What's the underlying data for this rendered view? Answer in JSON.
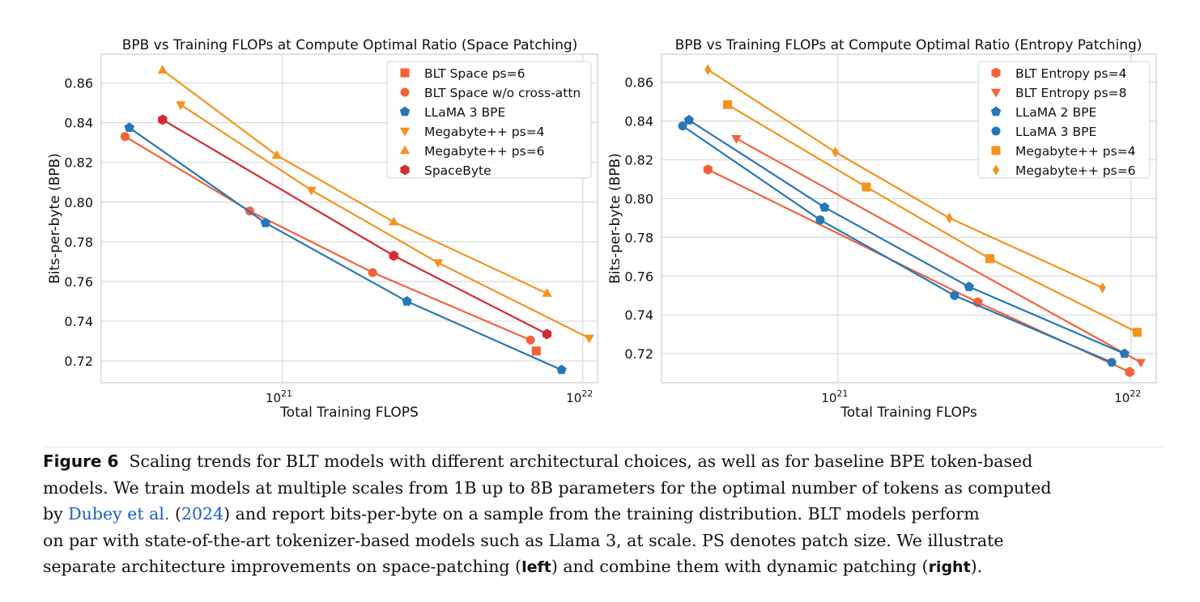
{
  "chart_data": [
    {
      "type": "line",
      "title": "BPB vs Training FLOPs at Compute Optimal Ratio (Space Patching)",
      "xlabel": "Total Training FLOPS",
      "ylabel": "Bits-per-byte (BPB)",
      "xscale": "log",
      "xlim": [
        2.5e+20,
        1.12e+22
      ],
      "ylim": [
        0.709,
        0.8745
      ],
      "xticks": [
        1e+21,
        1e+22
      ],
      "yticks": [
        0.72,
        0.74,
        0.76,
        0.78,
        0.8,
        0.82,
        0.84,
        0.86
      ],
      "grid": true,
      "legend_position": "top-right",
      "series": [
        {
          "name": "BLT Space ps=6",
          "color": "#f4623a",
          "marker": "square",
          "line": false,
          "x": [
            7e+21
          ],
          "y": [
            0.725
          ]
        },
        {
          "name": "BLT Space w/o cross-attn",
          "color": "#f4623a",
          "marker": "circle",
          "line": true,
          "x": [
            3e+20,
            7.8e+20,
            2e+21,
            6.7e+21
          ],
          "y": [
            0.833,
            0.7955,
            0.7645,
            0.7305
          ]
        },
        {
          "name": "LLaMA 3 BPE",
          "color": "#2677b8",
          "marker": "pentagon",
          "line": true,
          "x": [
            3.1e+20,
            8.8e+20,
            2.6e+21,
            8.5e+21
          ],
          "y": [
            0.8375,
            0.7895,
            0.75,
            0.7155
          ]
        },
        {
          "name": "Megabyte++ ps=4",
          "color": "#f5921e",
          "marker": "triangle-down",
          "line": true,
          "x": [
            4.6e+20,
            1.25e+21,
            3.3e+21,
            1.05e+22
          ],
          "y": [
            0.849,
            0.806,
            0.7695,
            0.7315
          ]
        },
        {
          "name": "Megabyte++ ps=6",
          "color": "#f5921e",
          "marker": "triangle-up",
          "line": true,
          "x": [
            4e+20,
            9.6e+20,
            2.35e+21,
            7.6e+21
          ],
          "y": [
            0.8665,
            0.8235,
            0.79,
            0.754
          ]
        },
        {
          "name": "SpaceByte",
          "color": "#d42c36",
          "marker": "hexagon",
          "line": true,
          "x": [
            4e+20,
            2.35e+21,
            7.6e+21
          ],
          "y": [
            0.8415,
            0.773,
            0.7335
          ]
        }
      ]
    },
    {
      "type": "line",
      "title": "BPB vs Training FLOPs at Compute Optimal Ratio (Entropy Patching)",
      "xlabel": "Total Training FLOPs",
      "ylabel": "Bits-per-byte (BPB)",
      "xscale": "log",
      "xlim": [
        2.5e+20,
        1.22e+22
      ],
      "ylim": [
        0.705,
        0.8745
      ],
      "xticks": [
        1e+21,
        1e+22
      ],
      "yticks": [
        0.72,
        0.74,
        0.76,
        0.78,
        0.8,
        0.82,
        0.84,
        0.86
      ],
      "grid": true,
      "legend_position": "top-right",
      "series": [
        {
          "name": "BLT Entropy ps=4",
          "color": "#f4623a",
          "marker": "hexagon",
          "line": true,
          "x": [
            3.6e+20,
            3e+21,
            9.9e+21
          ],
          "y": [
            0.815,
            0.7465,
            0.7105
          ]
        },
        {
          "name": "BLT Entropy ps=8",
          "color": "#f4623a",
          "marker": "triangle-down",
          "line": true,
          "x": [
            4.5e+20,
            1.08e+22
          ],
          "y": [
            0.831,
            0.7155
          ]
        },
        {
          "name": "LLaMA 2 BPE",
          "color": "#2677b8",
          "marker": "pentagon",
          "line": true,
          "x": [
            3.1e+20,
            9e+20,
            2.8e+21,
            9.5e+21
          ],
          "y": [
            0.8405,
            0.7955,
            0.7545,
            0.72
          ]
        },
        {
          "name": "LLaMA 3 BPE",
          "color": "#2677b8",
          "marker": "circle",
          "line": true,
          "x": [
            2.95e+20,
            8.7e+20,
            2.5e+21,
            8.6e+21
          ],
          "y": [
            0.8375,
            0.789,
            0.75,
            0.7155
          ]
        },
        {
          "name": "Megabyte++ ps=4",
          "color": "#f5921e",
          "marker": "square",
          "line": true,
          "x": [
            4.2e+20,
            1.25e+21,
            3.3e+21,
            1.05e+22
          ],
          "y": [
            0.8485,
            0.806,
            0.769,
            0.731
          ]
        },
        {
          "name": "Megabyte++ ps=6",
          "color": "#f5921e",
          "marker": "diamond",
          "line": true,
          "x": [
            3.6e+20,
            9.8e+20,
            2.4e+21,
            8e+21
          ],
          "y": [
            0.8665,
            0.824,
            0.79,
            0.754
          ]
        }
      ]
    }
  ],
  "caption": {
    "label": "Figure 6",
    "line1": "Scaling trends for BLT models with different architectural choices, as well as for baseline BPE token-based",
    "line2": "models. We train models at multiple scales from 1B up to 8B parameters for the optimal number of tokens as computed",
    "line3_pre": "by",
    "cite_authors": "Dubey et al.",
    "cite_year_pre": "(",
    "cite_year": "2024",
    "line3_post": ") and report bits-per-byte on a sample from the training distribution.  BLT models perform",
    "line4": "on par with state-of-the-art tokenizer-based models such as Llama 3, at scale. PS denotes patch size. We illustrate",
    "line5_pre": "separate architecture improvements on space-patching (",
    "left_word": "left",
    "line5_mid": ") and combine them with dynamic patching (",
    "right_word": "right",
    "line5_post": ")."
  }
}
